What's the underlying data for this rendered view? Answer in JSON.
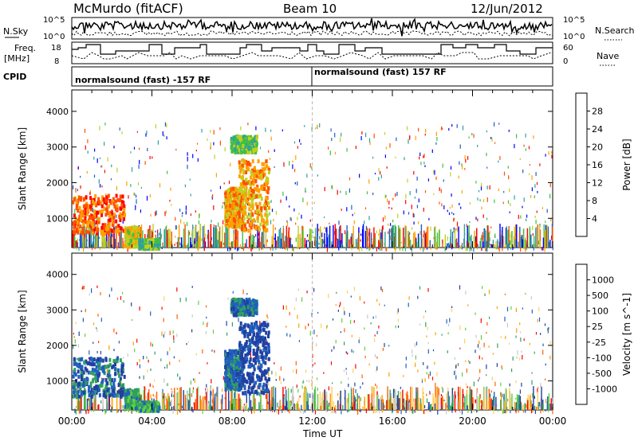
{
  "header": {
    "station": "McMurdo (fitACF)",
    "beam": "Beam 10",
    "date": "12/Jun/2012"
  },
  "top_strips": {
    "nsky_label": "N.Sky",
    "nsearch_label": "N.Search",
    "freq_label_line1": "Freq.",
    "freq_label_line2": "[MHz]",
    "nave_label": "Nave",
    "cpid_label": "CPID",
    "noise_ticks": [
      "10^5",
      "10^0"
    ],
    "freq_ticks": [
      "18",
      "8"
    ],
    "nave_ticks": [
      "60",
      "0"
    ],
    "cpid_segments": [
      {
        "label": "normalsound (fast) -157 RF",
        "start_hour": 0,
        "end_hour": 12
      },
      {
        "label": "normalsound (fast) 157 RF",
        "start_hour": 12,
        "end_hour": 24
      }
    ]
  },
  "colors": {
    "power": [
      "#0000ff",
      "#2060c0",
      "#30a0a0",
      "#40c040",
      "#c0d020",
      "#ffa000",
      "#ff5000",
      "#ff0000"
    ],
    "velocity": [
      "#ff0000",
      "#ff6000",
      "#ffa000",
      "#ffd060",
      "#c8c8c8",
      "#60d040",
      "#30a060",
      "#2060c0",
      "#2040a0"
    ]
  },
  "chart_data": [
    {
      "type": "heatmap",
      "title": "Power",
      "ylabel": "Slant Range [km]",
      "xlabel": "Time UT",
      "x_ticks": [
        "00:00",
        "04:00",
        "08:00",
        "12:00",
        "16:00",
        "20:00",
        "00:00"
      ],
      "y_ticks": [
        1000,
        2000,
        3000,
        4000
      ],
      "ylim": [
        180,
        4600
      ],
      "xlim_hours": [
        0,
        24
      ],
      "colorbar_label": "Power [dB]",
      "colorbar_ticks": [
        4,
        8,
        12,
        16,
        20,
        24,
        28
      ],
      "colorbar_range": [
        0,
        32
      ],
      "echo_regions": [
        {
          "t0": 0.0,
          "t1": 2.6,
          "r0": 600,
          "r1": 1700,
          "value": 26
        },
        {
          "t0": 2.6,
          "t1": 3.3,
          "r0": 250,
          "r1": 800,
          "value": 18
        },
        {
          "t0": 3.3,
          "t1": 4.3,
          "r0": 200,
          "r1": 450,
          "value": 14
        },
        {
          "t0": 7.6,
          "t1": 8.5,
          "r0": 800,
          "r1": 1900,
          "value": 24
        },
        {
          "t0": 8.3,
          "t1": 9.8,
          "r0": 700,
          "r1": 2700,
          "value": 22
        },
        {
          "t0": 7.9,
          "t1": 9.2,
          "r0": 2900,
          "r1": 3350,
          "value": 13
        }
      ]
    },
    {
      "type": "heatmap",
      "title": "Velocity",
      "ylabel": "Slant Range [km]",
      "xlabel": "Time UT",
      "x_ticks": [
        "00:00",
        "04:00",
        "08:00",
        "12:00",
        "16:00",
        "20:00",
        "00:00"
      ],
      "y_ticks": [
        1000,
        2000,
        3000,
        4000
      ],
      "ylim": [
        180,
        4600
      ],
      "xlim_hours": [
        0,
        24
      ],
      "colorbar_label": "Velocity [m s^-1]",
      "colorbar_ticks": [
        "1000",
        "500",
        "100",
        "25",
        "-25",
        "-100",
        "-500",
        "-1000"
      ],
      "echo_regions": [
        {
          "t0": 0.0,
          "t1": 2.6,
          "r0": 600,
          "r1": 1700,
          "value": 250
        },
        {
          "t0": 2.6,
          "t1": 3.3,
          "r0": 250,
          "r1": 800,
          "value": 60
        },
        {
          "t0": 3.3,
          "t1": 4.3,
          "r0": 200,
          "r1": 450,
          "value": 40
        },
        {
          "t0": 7.6,
          "t1": 8.5,
          "r0": 800,
          "r1": 1900,
          "value": 300
        },
        {
          "t0": 8.3,
          "t1": 9.8,
          "r0": 700,
          "r1": 2700,
          "value": 800
        },
        {
          "t0": 7.9,
          "t1": 9.2,
          "r0": 2900,
          "r1": 3350,
          "value": 150
        }
      ]
    }
  ]
}
